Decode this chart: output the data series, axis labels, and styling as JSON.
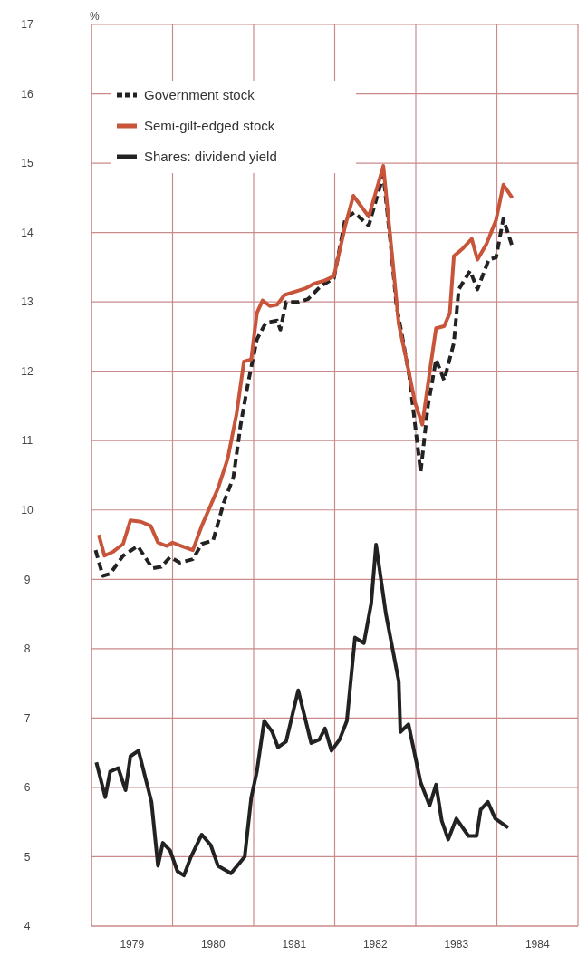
{
  "chart_data": {
    "type": "line",
    "ylabel": "%",
    "xlim": [
      1979,
      1985
    ],
    "ylim": [
      4,
      17
    ],
    "yticks": [
      4,
      5,
      6,
      7,
      8,
      9,
      10,
      11,
      12,
      13,
      14,
      15,
      16,
      17
    ],
    "xticks": [
      {
        "value": 1979,
        "label": null
      },
      {
        "value": 1979.5,
        "label": "1979"
      },
      {
        "value": 1980,
        "label": null
      },
      {
        "value": 1980.5,
        "label": "1980"
      },
      {
        "value": 1981,
        "label": null
      },
      {
        "value": 1981.5,
        "label": "1981"
      },
      {
        "value": 1982,
        "label": null
      },
      {
        "value": 1982.5,
        "label": "1982"
      },
      {
        "value": 1983,
        "label": null
      },
      {
        "value": 1983.5,
        "label": "1983"
      },
      {
        "value": 1984,
        "label": null
      },
      {
        "value": 1984.5,
        "label": "1984"
      },
      {
        "value": 1985,
        "label": null
      }
    ],
    "grid": true,
    "legend": "top left",
    "series": [
      {
        "name": "Government stock",
        "color": "#222222",
        "line_style": "dashed",
        "x": [
          1979.05,
          1979.14,
          1979.23,
          1979.39,
          1979.57,
          1979.75,
          1979.86,
          1979.97,
          1980.09,
          1980.25,
          1980.36,
          1980.5,
          1980.63,
          1980.75,
          1980.84,
          1980.93,
          1981.04,
          1981.15,
          1981.29,
          1981.33,
          1981.4,
          1981.56,
          1981.67,
          1981.83,
          1981.99,
          1982.13,
          1982.24,
          1982.42,
          1982.6,
          1982.69,
          1982.76,
          1982.83,
          1982.92,
          1983.06,
          1983.15,
          1983.25,
          1983.35,
          1983.47,
          1983.53,
          1983.67,
          1983.76,
          1983.9,
          1983.99,
          1984.08,
          1984.19
        ],
        "values": [
          9.42,
          9.05,
          9.08,
          9.34,
          9.48,
          9.16,
          9.18,
          9.32,
          9.24,
          9.29,
          9.51,
          9.56,
          10.1,
          10.47,
          11.23,
          11.82,
          12.46,
          12.7,
          12.73,
          12.6,
          13.0,
          13.0,
          13.04,
          13.23,
          13.34,
          14.2,
          14.29,
          14.1,
          14.83,
          13.83,
          12.96,
          12.52,
          11.93,
          10.55,
          11.5,
          12.17,
          11.87,
          12.41,
          13.18,
          13.45,
          13.18,
          13.61,
          13.64,
          14.2,
          13.8
        ]
      },
      {
        "name": "Semi-gilt-edged stock",
        "color": "#c8553a",
        "line_style": "solid",
        "x": [
          1979.09,
          1979.16,
          1979.27,
          1979.39,
          1979.48,
          1979.61,
          1979.73,
          1979.82,
          1979.93,
          1980.0,
          1980.11,
          1980.25,
          1980.36,
          1980.56,
          1980.68,
          1980.79,
          1980.88,
          1980.97,
          1981.04,
          1981.11,
          1981.2,
          1981.29,
          1981.38,
          1981.52,
          1981.65,
          1981.74,
          1981.88,
          1981.99,
          1982.13,
          1982.23,
          1982.42,
          1982.6,
          1982.69,
          1982.79,
          1982.88,
          1982.99,
          1983.08,
          1983.19,
          1983.25,
          1983.35,
          1983.42,
          1983.47,
          1983.58,
          1983.69,
          1983.76,
          1983.87,
          1983.99,
          1984.08,
          1984.19
        ],
        "values": [
          9.64,
          9.34,
          9.4,
          9.51,
          9.85,
          9.83,
          9.77,
          9.53,
          9.48,
          9.53,
          9.48,
          9.42,
          9.77,
          10.31,
          10.74,
          11.39,
          12.14,
          12.17,
          12.84,
          13.02,
          12.94,
          12.96,
          13.1,
          13.15,
          13.2,
          13.26,
          13.31,
          13.37,
          14.1,
          14.53,
          14.23,
          14.96,
          13.88,
          12.68,
          12.19,
          11.55,
          11.23,
          12.14,
          12.62,
          12.65,
          12.84,
          13.66,
          13.77,
          13.91,
          13.61,
          13.83,
          14.18,
          14.69,
          14.5
        ]
      },
      {
        "name": "Shares: dividend yield",
        "color": "#222222",
        "line_style": "solid",
        "x": [
          1979.06,
          1979.17,
          1979.23,
          1979.33,
          1979.42,
          1979.48,
          1979.58,
          1979.74,
          1979.82,
          1979.88,
          1979.97,
          1980.06,
          1980.14,
          1980.22,
          1980.36,
          1980.47,
          1980.56,
          1980.72,
          1980.89,
          1980.97,
          1981.04,
          1981.13,
          1981.23,
          1981.3,
          1981.4,
          1981.55,
          1981.71,
          1981.81,
          1981.88,
          1981.96,
          1982.06,
          1982.15,
          1982.25,
          1982.36,
          1982.45,
          1982.51,
          1982.63,
          1982.79,
          1982.81,
          1982.91,
          1983.06,
          1983.17,
          1983.25,
          1983.32,
          1983.4,
          1983.5,
          1983.65,
          1983.75,
          1983.8,
          1983.89,
          1983.98,
          1984.14
        ],
        "values": [
          6.36,
          5.86,
          6.23,
          6.28,
          5.96,
          6.45,
          6.53,
          5.79,
          4.87,
          5.2,
          5.09,
          4.79,
          4.73,
          4.98,
          5.32,
          5.17,
          4.87,
          4.76,
          5.0,
          5.85,
          6.23,
          6.96,
          6.8,
          6.58,
          6.66,
          7.4,
          6.64,
          6.69,
          6.85,
          6.53,
          6.69,
          6.96,
          8.16,
          8.08,
          8.65,
          9.5,
          8.51,
          7.53,
          6.8,
          6.91,
          6.07,
          5.74,
          6.04,
          5.52,
          5.25,
          5.55,
          5.3,
          5.3,
          5.68,
          5.79,
          5.55,
          5.42
        ]
      }
    ]
  }
}
